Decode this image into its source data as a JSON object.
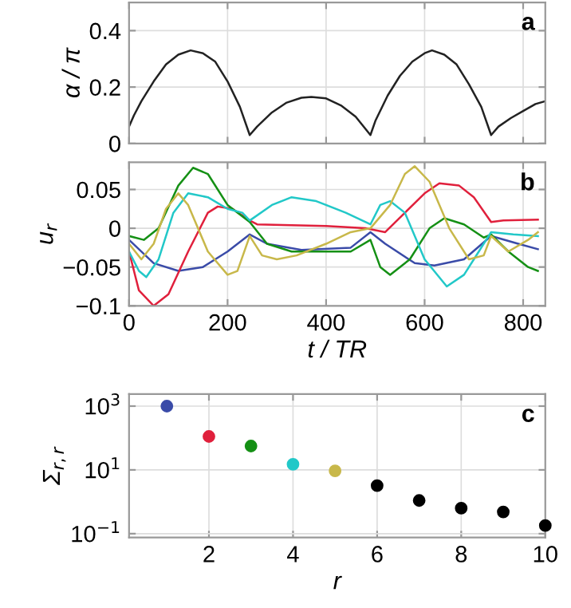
{
  "chart_data": [
    {
      "type": "line",
      "ylabel": "α / π",
      "annotations": [
        "a"
      ],
      "xlim": [
        0,
        845
      ],
      "ylim": [
        0,
        0.5
      ],
      "xticks": [
        0,
        200,
        400,
        600,
        800
      ],
      "yticks": [
        0,
        0.2,
        0.4
      ],
      "tick_labels": "y",
      "grid": true,
      "series": [
        {
          "color": "#222222",
          "x": [
            0,
            10,
            25,
            50,
            75,
            100,
            125,
            150,
            175,
            200,
            225,
            245,
            260,
            290,
            320,
            350,
            370,
            400,
            430,
            460,
            490,
            500,
            525,
            550,
            575,
            600,
            615,
            640,
            665,
            690,
            715,
            735,
            750,
            775,
            800,
            825,
            845
          ],
          "values": [
            0.06,
            0.1,
            0.15,
            0.22,
            0.28,
            0.315,
            0.33,
            0.32,
            0.29,
            0.22,
            0.13,
            0.03,
            0.06,
            0.11,
            0.145,
            0.162,
            0.165,
            0.16,
            0.135,
            0.095,
            0.03,
            0.08,
            0.17,
            0.24,
            0.29,
            0.32,
            0.33,
            0.315,
            0.28,
            0.21,
            0.13,
            0.03,
            0.06,
            0.09,
            0.115,
            0.14,
            0.15
          ]
        }
      ]
    },
    {
      "type": "line",
      "xlabel": "t / TR",
      "ylabel": "u$_{r}$",
      "annotations": [
        "b"
      ],
      "xlim": [
        0,
        845
      ],
      "ylim": [
        -0.1,
        0.085
      ],
      "xticks": [
        0,
        200,
        400,
        600,
        800
      ],
      "yticks": [
        {
          "value": -0.1,
          "label": "−0.1"
        },
        {
          "value": -0.05,
          "label": "−0.05"
        },
        0,
        0.05
      ],
      "grid": true,
      "series": [
        {
          "color": "#3a4ba8",
          "x": [
            0,
            50,
            100,
            150,
            200,
            245,
            280,
            350,
            450,
            490,
            520,
            580,
            620,
            680,
            735,
            790,
            830
          ],
          "values": [
            -0.015,
            -0.045,
            -0.055,
            -0.05,
            -0.03,
            -0.008,
            -0.02,
            -0.028,
            -0.025,
            -0.005,
            -0.02,
            -0.045,
            -0.048,
            -0.04,
            -0.01,
            -0.02,
            -0.027
          ]
        },
        {
          "color": "#e0203c",
          "x": [
            0,
            20,
            50,
            80,
            120,
            160,
            180,
            210,
            245,
            260,
            400,
            480,
            520,
            560,
            600,
            630,
            670,
            700,
            735,
            760,
            830
          ],
          "values": [
            -0.03,
            -0.08,
            -0.1,
            -0.085,
            -0.03,
            0.02,
            0.028,
            0.025,
            0.01,
            0.005,
            0.003,
            0.0,
            -0.005,
            0.02,
            0.045,
            0.058,
            0.055,
            0.04,
            0.008,
            0.01,
            0.011
          ]
        },
        {
          "color": "#159015",
          "x": [
            0,
            30,
            60,
            100,
            130,
            160,
            200,
            245,
            280,
            330,
            450,
            490,
            510,
            530,
            570,
            610,
            640,
            680,
            720,
            735,
            770,
            810,
            830
          ],
          "values": [
            -0.01,
            -0.015,
            0.0,
            0.055,
            0.078,
            0.07,
            0.03,
            0.008,
            -0.02,
            -0.03,
            -0.03,
            -0.015,
            -0.05,
            -0.06,
            -0.04,
            0.0,
            0.013,
            0.005,
            -0.012,
            -0.008,
            -0.03,
            -0.05,
            -0.055
          ]
        },
        {
          "color": "#22c8c8",
          "x": [
            0,
            20,
            35,
            60,
            90,
            120,
            160,
            200,
            230,
            245,
            290,
            330,
            380,
            440,
            490,
            510,
            530,
            560,
            600,
            645,
            680,
            710,
            735,
            780,
            830
          ],
          "values": [
            -0.03,
            -0.055,
            -0.063,
            -0.04,
            0.02,
            0.045,
            0.04,
            0.025,
            0.02,
            0.01,
            0.03,
            0.04,
            0.035,
            0.02,
            0.005,
            0.03,
            0.035,
            0.02,
            -0.04,
            -0.075,
            -0.06,
            -0.03,
            -0.005,
            -0.008,
            -0.01
          ]
        },
        {
          "color": "#c8b84a",
          "x": [
            0,
            25,
            50,
            75,
            100,
            120,
            160,
            200,
            220,
            245,
            270,
            300,
            340,
            400,
            450,
            490,
            530,
            560,
            580,
            610,
            650,
            690,
            720,
            735,
            770,
            810,
            830
          ],
          "values": [
            -0.02,
            -0.04,
            -0.02,
            0.025,
            0.045,
            0.03,
            -0.03,
            -0.06,
            -0.055,
            -0.01,
            -0.035,
            -0.04,
            -0.035,
            -0.02,
            -0.005,
            0.0,
            0.03,
            0.07,
            0.08,
            0.06,
            0.0,
            -0.04,
            -0.035,
            -0.01,
            -0.03,
            -0.015,
            -0.005
          ]
        }
      ]
    },
    {
      "type": "scatter",
      "xlabel": "r",
      "ylabel": "Σ$_{r,r}$",
      "annotations": [
        "c"
      ],
      "log": "y",
      "marker": "circle",
      "xlim": [
        0.1,
        10
      ],
      "ylim": [
        0.076,
        2400
      ],
      "xticks": [
        2,
        4,
        6,
        8,
        10
      ],
      "yticks": [
        {
          "value": 0.1,
          "label": "10$^{−1}$"
        },
        {
          "value": 10,
          "label": "10$^{1}$"
        },
        {
          "value": 1000,
          "label": "10$^{3}$"
        }
      ],
      "grid": true,
      "x": [
        1,
        2,
        3,
        4,
        5,
        6,
        7,
        8,
        9,
        10
      ],
      "values": [
        1000,
        112,
        56,
        15,
        9.3,
        3.2,
        1.1,
        0.63,
        0.48,
        0.18
      ],
      "colors": [
        "#3a4ba8",
        "#e0203c",
        "#159015",
        "#22c8c8",
        "#c8b84a",
        "#000000",
        "#000000",
        "#000000",
        "#000000",
        "#000000"
      ]
    }
  ]
}
